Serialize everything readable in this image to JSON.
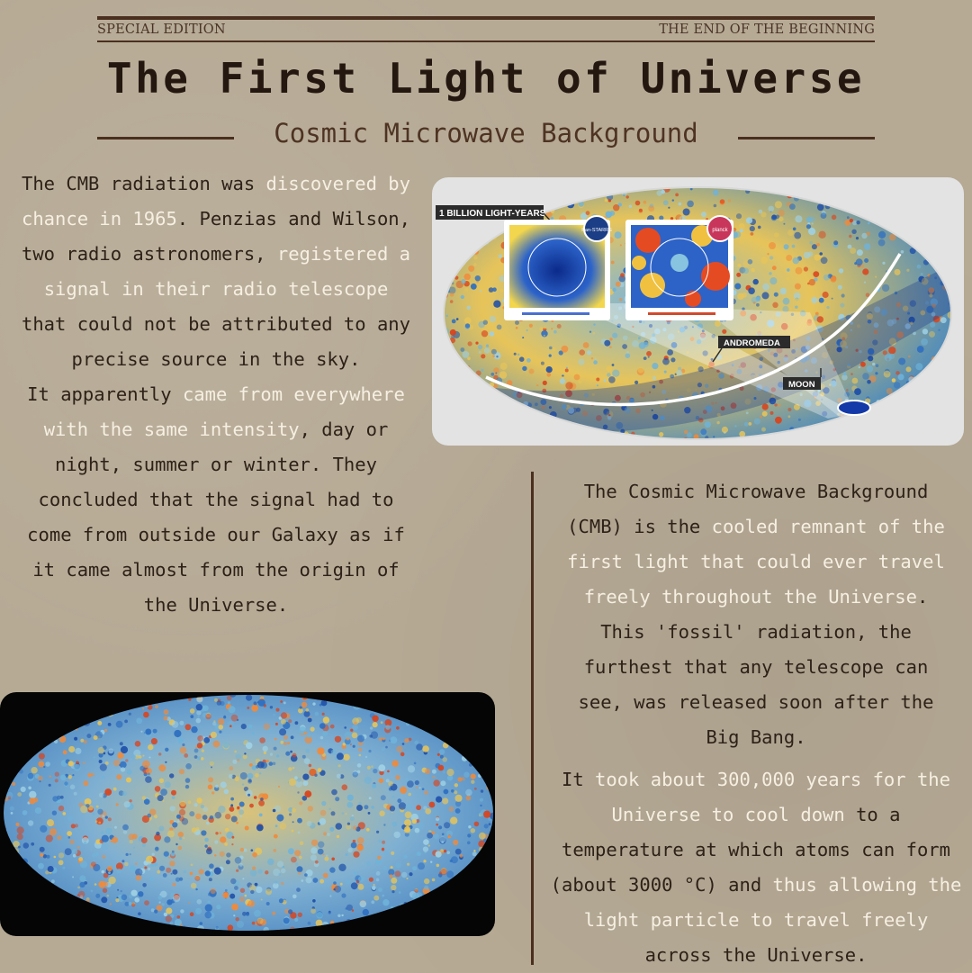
{
  "header": {
    "left_label": "SPECIAL EDITION",
    "right_label": "THE END OF THE BEGINNING",
    "title": "The First Light of Universe",
    "subtitle": "Cosmic Microwave Background"
  },
  "left_text": {
    "para1": [
      {
        "t": "The CMB radiation was ",
        "hl": false
      },
      {
        "t": "discovered by chance in 1965",
        "hl": true
      },
      {
        "t": ". Penzias and Wilson, two radio astronomers, ",
        "hl": false
      },
      {
        "t": "registered a signal in their radio telescope",
        "hl": true
      },
      {
        "t": " that could not be attributed to any precise source in the sky.",
        "hl": false
      }
    ],
    "para2": [
      {
        "t": "It apparently ",
        "hl": false
      },
      {
        "t": "came from everywhere with the same intensity",
        "hl": true
      },
      {
        "t": ", day or night, summer or winter. They concluded that the signal had to come from outside our Galaxy as if it came almost from the origin of the Universe.",
        "hl": false
      }
    ]
  },
  "right_text": {
    "para1": [
      {
        "t": "The Cosmic Microwave Background (CMB) is the ",
        "hl": false
      },
      {
        "t": "cooled remnant of the first light that could ever travel freely throughout the Universe",
        "hl": true
      },
      {
        "t": ". This 'fossil' radiation, the furthest that any telescope can see, was released soon after the Big Bang.",
        "hl": false
      }
    ],
    "para2": [
      {
        "t": "It ",
        "hl": false
      },
      {
        "t": "took about 300,000 years for the Universe to cool down",
        "hl": true
      },
      {
        "t": " to a temperature at which atoms can form (about 3000 °C) and ",
        "hl": false
      },
      {
        "t": "thus allowing the light particle to travel freely",
        "hl": true
      },
      {
        "t": " across the Universe.",
        "hl": false
      }
    ]
  },
  "top_map": {
    "scale_label": "1 BILLION LIGHT-YEARS",
    "badge_left": "Pan-STARRS",
    "badge_right": "planck",
    "label_andromeda": "ANDROMEDA",
    "label_moon": "MOON"
  },
  "colors": {
    "background": "#b6aa95",
    "highlight_text": "#f6efe2",
    "rule": "#4a2f1f",
    "cmb_blue": "#2f6fc0",
    "cmb_red": "#d9431c",
    "cmb_yellow": "#e6c45a"
  }
}
